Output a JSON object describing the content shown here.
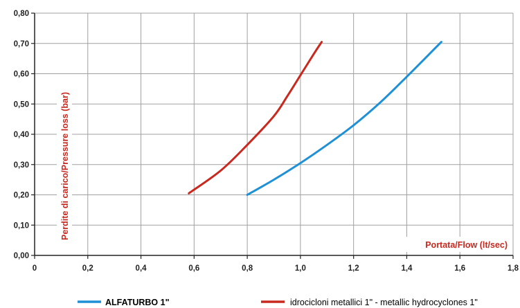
{
  "chart_data": {
    "type": "line",
    "xlabel": "Portata/Flow (lt/sec)",
    "ylabel": "Perdite di carico/Pressure loss (bar)",
    "xlim": [
      0,
      1.8
    ],
    "ylim": [
      0,
      0.8
    ],
    "x_ticks": [
      "0",
      "0,2",
      "0,4",
      "0,6",
      "0,8",
      "1,0",
      "1,2",
      "1,4",
      "1,6",
      "1,8"
    ],
    "y_ticks": [
      "0,00",
      "0,10",
      "0,20",
      "0,30",
      "0,40",
      "0,50",
      "0,60",
      "0,70",
      "0,80"
    ],
    "grid": true,
    "legend_position": "bottom",
    "series": [
      {
        "name": "ALFATURBO 1\"",
        "color": "#1e90d6",
        "x": [
          0.8,
          0.9,
          1.0,
          1.1,
          1.2,
          1.3,
          1.4,
          1.53
        ],
        "y": [
          0.2,
          0.25,
          0.305,
          0.365,
          0.43,
          0.505,
          0.59,
          0.705
        ]
      },
      {
        "name": "idrocicloni metallici 1\" - metallic hydrocyclones 1\"",
        "color": "#c8281e",
        "x": [
          0.58,
          0.7,
          0.8,
          0.9,
          0.95,
          1.0,
          1.05,
          1.08
        ],
        "y": [
          0.205,
          0.28,
          0.365,
          0.46,
          0.525,
          0.595,
          0.665,
          0.705
        ]
      }
    ],
    "colors": {
      "x_title": "#c8281e",
      "y_title": "#c8281e",
      "axis": "#222222",
      "grid": "#a0a0a0"
    }
  }
}
